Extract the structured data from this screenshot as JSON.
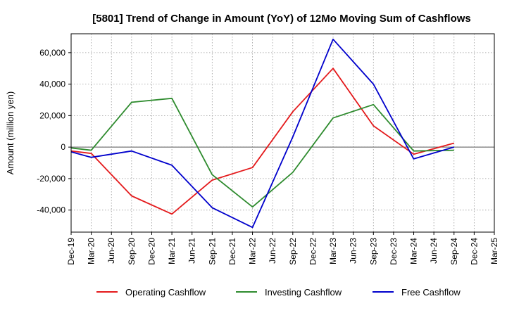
{
  "chart_data": {
    "type": "line",
    "title": "[5801]  Trend of Change in Amount (YoY) of 12Mo Moving Sum of Cashflows",
    "xlabel": "",
    "ylabel": "Amount (million yen)",
    "ylim": [
      -54000,
      72000
    ],
    "yticks": [
      -40000,
      -20000,
      0,
      20000,
      40000,
      60000
    ],
    "ytick_labels": [
      "-40,000",
      "-20,000",
      "0",
      "20,000",
      "40,000",
      "60,000"
    ],
    "categories": [
      "Dec-19",
      "Mar-20",
      "Jun-20",
      "Sep-20",
      "Dec-20",
      "Mar-21",
      "Jun-21",
      "Sep-21",
      "Dec-21",
      "Mar-22",
      "Jun-22",
      "Sep-22",
      "Dec-22",
      "Mar-23",
      "Jun-23",
      "Sep-23",
      "Dec-23",
      "Mar-24",
      "Jun-24",
      "Sep-24",
      "Dec-24",
      "Mar-25"
    ],
    "grid": true,
    "legend_position": "bottom",
    "series": [
      {
        "name": "Operating Cashflow",
        "color": "#e41a1c",
        "values": [
          -2500,
          -4000,
          null,
          -31000,
          null,
          -42500,
          null,
          -21000,
          null,
          -13000,
          null,
          22500,
          null,
          50000,
          null,
          13500,
          null,
          -4500,
          null,
          2500,
          null,
          null
        ]
      },
      {
        "name": "Investing Cashflow",
        "color": "#2e8b2e",
        "values": [
          -500,
          -2000,
          null,
          28500,
          null,
          31000,
          null,
          -17500,
          null,
          -38000,
          null,
          -16000,
          null,
          18500,
          null,
          27000,
          null,
          -2500,
          null,
          -2000,
          null,
          null
        ]
      },
      {
        "name": "Free Cashflow",
        "color": "#0000cc",
        "values": [
          -3000,
          -6500,
          null,
          -2500,
          null,
          -11500,
          null,
          -38500,
          null,
          -51000,
          null,
          6500,
          null,
          68500,
          null,
          40000,
          null,
          -7500,
          null,
          0,
          null,
          null
        ]
      }
    ]
  }
}
